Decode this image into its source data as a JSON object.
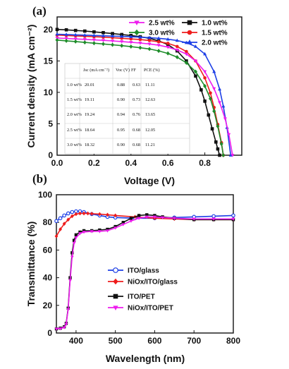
{
  "chart_data": [
    {
      "panel_label": "(a)",
      "type": "line",
      "xlabel": "Voltage (V)",
      "ylabel": "Current density (mA cm⁻²)",
      "xlim": [
        0.0,
        1.0
      ],
      "ylim": [
        0,
        22
      ],
      "xticks": [
        "0.0",
        "0.2",
        "0.4",
        "0.6",
        "0.8"
      ],
      "yticks": [
        "0",
        "5",
        "10",
        "15",
        "20"
      ],
      "legend_position": "top-right",
      "series": [
        {
          "name": "1.0 wt%",
          "color": "#111111",
          "marker": "square",
          "jsc": 20.01,
          "voc": 0.88,
          "x": [
            0,
            0.05,
            0.1,
            0.15,
            0.2,
            0.25,
            0.3,
            0.35,
            0.4,
            0.45,
            0.5,
            0.55,
            0.6,
            0.65,
            0.7,
            0.75,
            0.78,
            0.8,
            0.82,
            0.84,
            0.86,
            0.87,
            0.88
          ],
          "y": [
            20.01,
            19.95,
            19.85,
            19.75,
            19.62,
            19.5,
            19.35,
            19.2,
            19.05,
            18.85,
            18.6,
            18.2,
            17.6,
            16.6,
            15.0,
            12.6,
            10.4,
            8.6,
            6.4,
            4.2,
            2.1,
            1.0,
            0
          ]
        },
        {
          "name": "1.5 wt%",
          "color": "#ee1c1c",
          "marker": "circle",
          "jsc": 19.11,
          "voc": 0.9,
          "x": [
            0,
            0.05,
            0.1,
            0.15,
            0.2,
            0.25,
            0.3,
            0.35,
            0.4,
            0.45,
            0.5,
            0.55,
            0.6,
            0.65,
            0.7,
            0.75,
            0.8,
            0.83,
            0.85,
            0.87,
            0.89,
            0.9
          ],
          "y": [
            19.11,
            19.05,
            18.98,
            18.92,
            18.85,
            18.78,
            18.7,
            18.6,
            18.5,
            18.4,
            18.25,
            18.05,
            17.8,
            17.3,
            16.5,
            15.0,
            12.3,
            9.9,
            7.6,
            4.9,
            2.0,
            0
          ]
        },
        {
          "name": "2.0 wt%",
          "color": "#1d3fe6",
          "marker": "triangle-up",
          "jsc": 19.24,
          "voc": 0.94,
          "x": [
            0,
            0.05,
            0.1,
            0.15,
            0.2,
            0.25,
            0.3,
            0.35,
            0.4,
            0.45,
            0.5,
            0.55,
            0.6,
            0.65,
            0.7,
            0.75,
            0.8,
            0.85,
            0.88,
            0.9,
            0.92,
            0.94
          ],
          "y": [
            19.24,
            19.2,
            19.15,
            19.1,
            19.05,
            19.0,
            18.95,
            18.9,
            18.85,
            18.78,
            18.7,
            18.6,
            18.45,
            18.25,
            17.9,
            17.3,
            16.1,
            13.3,
            10.5,
            7.8,
            4.4,
            0
          ]
        },
        {
          "name": "2.5 wt%",
          "color": "#ee1cee",
          "marker": "triangle-down",
          "jsc": 18.64,
          "voc": 0.95,
          "x": [
            0,
            0.05,
            0.1,
            0.15,
            0.2,
            0.25,
            0.3,
            0.35,
            0.4,
            0.45,
            0.5,
            0.55,
            0.6,
            0.65,
            0.7,
            0.75,
            0.8,
            0.85,
            0.88,
            0.91,
            0.93,
            0.95
          ],
          "y": [
            18.64,
            18.58,
            18.5,
            18.43,
            18.35,
            18.27,
            18.18,
            18.08,
            17.97,
            17.85,
            17.7,
            17.5,
            17.2,
            16.75,
            16.1,
            15.0,
            13.3,
            10.6,
            8.4,
            5.8,
            3.3,
            0
          ]
        },
        {
          "name": "3.0 wt%",
          "color": "#1e8c2a",
          "marker": "diamond",
          "jsc": 18.32,
          "voc": 0.9,
          "x": [
            0,
            0.05,
            0.1,
            0.15,
            0.2,
            0.25,
            0.3,
            0.35,
            0.4,
            0.45,
            0.5,
            0.55,
            0.6,
            0.65,
            0.7,
            0.75,
            0.8,
            0.83,
            0.85,
            0.87,
            0.89,
            0.9
          ],
          "y": [
            18.32,
            18.2,
            18.08,
            17.95,
            17.82,
            17.7,
            17.57,
            17.43,
            17.28,
            17.1,
            16.9,
            16.6,
            16.2,
            15.6,
            14.7,
            13.3,
            11.0,
            9.0,
            7.0,
            4.6,
            1.8,
            0
          ]
        }
      ],
      "table": {
        "headers": [
          "",
          "Jsc (mA cm⁻²)",
          "Voc (V)",
          "FF",
          "PCE (%)"
        ],
        "rows": [
          [
            "1.0 wt%",
            "20.01",
            "0.88",
            "0.63",
            "11.11"
          ],
          [
            "1.5 wt%",
            "19.11",
            "0.90",
            "0.73",
            "12.63"
          ],
          [
            "2.0 wt%",
            "19.24",
            "0.94",
            "0.76",
            "13.65"
          ],
          [
            "2.5 wt%",
            "18.64",
            "0.95",
            "0.68",
            "12.05"
          ],
          [
            "3.0 wt%",
            "18.32",
            "0.90",
            "0.68",
            "11.21"
          ]
        ]
      }
    },
    {
      "panel_label": "(b)",
      "type": "line",
      "xlabel": "Wavelength (nm)",
      "ylabel": "Transmittance (%)",
      "xlim": [
        350,
        800
      ],
      "ylim": [
        0,
        100
      ],
      "xticks": [
        "400",
        "500",
        "600",
        "700",
        "800"
      ],
      "yticks": [
        "0",
        "20",
        "40",
        "60",
        "80",
        "100"
      ],
      "legend_position": "center-left",
      "series": [
        {
          "name": "ITO/glass",
          "color": "#1d3fe6",
          "marker": "circle-open",
          "x": [
            350,
            360,
            370,
            380,
            390,
            400,
            410,
            420,
            440,
            460,
            480,
            500,
            550,
            600,
            650,
            700,
            750,
            800
          ],
          "y": [
            81,
            83,
            85,
            86.5,
            87.5,
            88,
            88,
            87.5,
            86,
            85,
            84,
            83.5,
            83,
            83,
            83.5,
            84,
            84.5,
            85
          ]
        },
        {
          "name": "NiOx/ITO/glass",
          "color": "#ee1c1c",
          "marker": "diamond",
          "x": [
            350,
            360,
            370,
            380,
            390,
            400,
            410,
            420,
            430,
            440,
            460,
            480,
            500,
            550,
            600,
            650,
            700,
            750,
            800
          ],
          "y": [
            70,
            75,
            79,
            82,
            84.5,
            86,
            86.5,
            86.5,
            86.5,
            86.3,
            86,
            85.5,
            85,
            84,
            83,
            82.5,
            82,
            82,
            82
          ]
        },
        {
          "name": "ITO/PET",
          "color": "#111111",
          "marker": "square",
          "x": [
            350,
            360,
            370,
            375,
            380,
            385,
            390,
            395,
            400,
            410,
            420,
            440,
            460,
            480,
            500,
            520,
            540,
            560,
            580,
            600,
            620,
            650,
            700,
            750,
            800
          ],
          "y": [
            3,
            3.5,
            4.5,
            7,
            18,
            40,
            58,
            67,
            71,
            73,
            74,
            74,
            74.5,
            75,
            77,
            80,
            83,
            85,
            85.5,
            85,
            84,
            83,
            82,
            82,
            82
          ]
        },
        {
          "name": "NiOx/ITO/PET",
          "color": "#ee1cee",
          "marker": "triangle-down",
          "x": [
            350,
            360,
            370,
            375,
            380,
            385,
            390,
            395,
            400,
            410,
            420,
            440,
            460,
            480,
            500,
            520,
            540,
            560,
            580,
            600,
            620,
            650,
            700,
            750,
            800
          ],
          "y": [
            3,
            3.2,
            4,
            6.5,
            17,
            38,
            55,
            65,
            69,
            72,
            73,
            73.5,
            73.5,
            74,
            76,
            78.5,
            81,
            83,
            84,
            84,
            83.5,
            83,
            82.5,
            82.5,
            82.5
          ]
        }
      ]
    }
  ]
}
